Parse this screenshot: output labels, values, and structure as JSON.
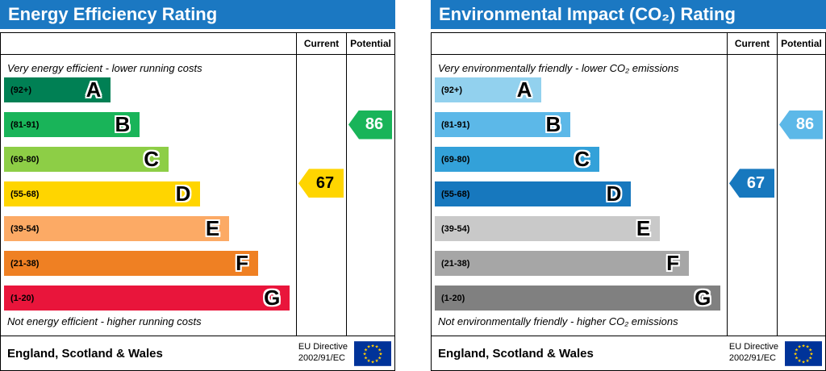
{
  "chart_data": [
    {
      "type": "bar",
      "title": "Energy Efficiency Rating",
      "columns": [
        "Current",
        "Potential"
      ],
      "top_note": "Very energy efficient - lower running costs",
      "bottom_note": "Not energy efficient - higher running costs",
      "footer_region": "England, Scotland & Wales",
      "footer_directive": [
        "EU Directive",
        "2002/91/EC"
      ],
      "header_color": "#1b78c2",
      "bands": [
        {
          "label": "(92+)",
          "letter": "A",
          "min": 92,
          "max": 100,
          "color": "#008054",
          "width_pct": 37
        },
        {
          "label": "(81-91)",
          "letter": "B",
          "min": 81,
          "max": 91,
          "color": "#19b459",
          "width_pct": 47
        },
        {
          "label": "(69-80)",
          "letter": "C",
          "min": 69,
          "max": 80,
          "color": "#8dce46",
          "width_pct": 57
        },
        {
          "label": "(55-68)",
          "letter": "D",
          "min": 55,
          "max": 68,
          "color": "#ffd500",
          "width_pct": 68
        },
        {
          "label": "(39-54)",
          "letter": "E",
          "min": 39,
          "max": 54,
          "color": "#fcaa65",
          "width_pct": 78
        },
        {
          "label": "(21-38)",
          "letter": "F",
          "min": 21,
          "max": 38,
          "color": "#ef8023",
          "width_pct": 88
        },
        {
          "label": "(1-20)",
          "letter": "G",
          "min": 1,
          "max": 20,
          "color": "#e9153b",
          "width_pct": 99
        }
      ],
      "current": {
        "value": 67,
        "band_index": 3,
        "color": "#ffd500",
        "text_color": "#000000"
      },
      "potential": {
        "value": 86,
        "band_index": 1,
        "color": "#19b459",
        "text_color": "#ffffff"
      }
    },
    {
      "type": "bar",
      "title": "Environmental Impact (CO₂) Rating",
      "columns": [
        "Current",
        "Potential"
      ],
      "top_note": "Very environmentally friendly - lower CO₂ emissions",
      "bottom_note": "Not environmentally friendly - higher CO₂ emissions",
      "footer_region": "England, Scotland & Wales",
      "footer_directive": [
        "EU Directive",
        "2002/91/EC"
      ],
      "header_color": "#1b78c2",
      "bands": [
        {
          "label": "(92+)",
          "letter": "A",
          "min": 92,
          "max": 100,
          "color": "#92d1ee",
          "width_pct": 37
        },
        {
          "label": "(81-91)",
          "letter": "B",
          "min": 81,
          "max": 91,
          "color": "#5cb8e8",
          "width_pct": 47
        },
        {
          "label": "(69-80)",
          "letter": "C",
          "min": 69,
          "max": 80,
          "color": "#33a1d9",
          "width_pct": 57
        },
        {
          "label": "(55-68)",
          "letter": "D",
          "min": 55,
          "max": 68,
          "color": "#1778be",
          "width_pct": 68
        },
        {
          "label": "(39-54)",
          "letter": "E",
          "min": 39,
          "max": 54,
          "color": "#c9c9c9",
          "width_pct": 78
        },
        {
          "label": "(21-38)",
          "letter": "F",
          "min": 21,
          "max": 38,
          "color": "#a6a6a6",
          "width_pct": 88
        },
        {
          "label": "(1-20)",
          "letter": "G",
          "min": 1,
          "max": 20,
          "color": "#808080",
          "width_pct": 99
        }
      ],
      "current": {
        "value": 67,
        "band_index": 3,
        "color": "#1778be",
        "text_color": "#ffffff"
      },
      "potential": {
        "value": 86,
        "band_index": 1,
        "color": "#5cb8e8",
        "text_color": "#ffffff"
      }
    }
  ]
}
